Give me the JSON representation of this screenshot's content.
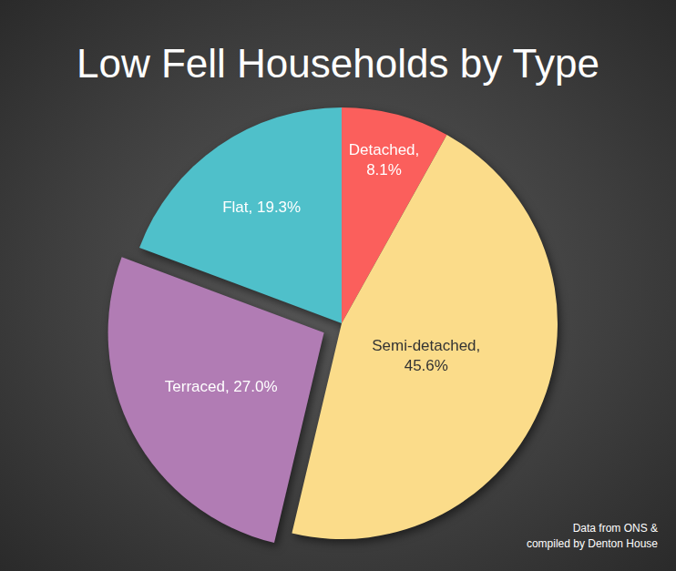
{
  "chart_data": {
    "type": "pie",
    "title": "Low Fell Households by Type",
    "categories": [
      "Detached",
      "Semi-detached",
      "Terraced",
      "Flat"
    ],
    "values": [
      8.1,
      45.6,
      27.0,
      19.3
    ],
    "value_labels": [
      "Detached, 8.1%",
      "Semi-detached, 45.6%",
      "Terraced, 27.0%",
      "Flat, 19.3%"
    ],
    "colors": [
      "#fb5f5c",
      "#fbdc8a",
      "#b17cb4",
      "#4fc0ca"
    ],
    "data_labels": true,
    "annotations": [
      "Data from ONS &",
      "compiled by Denton House"
    ]
  }
}
